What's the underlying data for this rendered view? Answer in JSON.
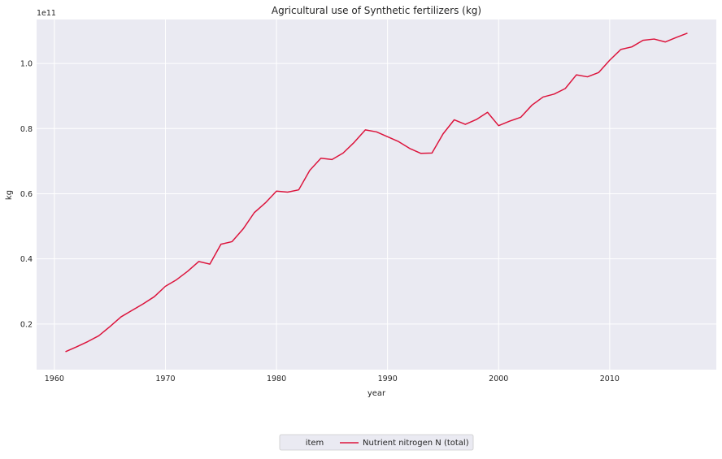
{
  "chart_data": {
    "type": "line",
    "title": "Agricultural use of Synthetic fertilizers (kg)",
    "xlabel": "year",
    "ylabel": "kg",
    "y_offset_label": "1e11",
    "xlim": [
      1958.4,
      2019.6
    ],
    "ylim": [
      6000000000.0,
      113500000000.0
    ],
    "x_ticks": [
      1960,
      1970,
      1980,
      1990,
      2000,
      2010
    ],
    "x_tick_labels": [
      "1960",
      "1970",
      "1980",
      "1990",
      "2000",
      "2010"
    ],
    "y_ticks": [
      20000000000.0,
      40000000000.0,
      60000000000.0,
      80000000000.0,
      100000000000.0
    ],
    "y_tick_labels": [
      "0.2",
      "0.4",
      "0.6",
      "0.8",
      "1.0"
    ],
    "grid": true,
    "legend": {
      "placement": "bottom-center",
      "title": "item",
      "entries": [
        "Nutrient nitrogen N (total)"
      ]
    },
    "colors": {
      "background": "#eaeaf2",
      "grid": "#ffffff",
      "line": "#dc143c"
    },
    "series": [
      {
        "name": "Nutrient nitrogen N (total)",
        "x": [
          1961,
          1962,
          1963,
          1964,
          1965,
          1966,
          1967,
          1968,
          1969,
          1970,
          1971,
          1972,
          1973,
          1974,
          1975,
          1976,
          1977,
          1978,
          1979,
          1980,
          1981,
          1982,
          1983,
          1984,
          1985,
          1986,
          1987,
          1988,
          1989,
          1990,
          1991,
          1992,
          1993,
          1994,
          1995,
          1996,
          1997,
          1998,
          1999,
          2000,
          2001,
          2002,
          2003,
          2004,
          2005,
          2006,
          2007,
          2008,
          2009,
          2010,
          2011,
          2012,
          2013,
          2014,
          2015,
          2016,
          2017
        ],
        "values": [
          11500000000.0,
          13000000000.0,
          14600000000.0,
          16400000000.0,
          19200000000.0,
          22200000000.0,
          24200000000.0,
          26200000000.0,
          28400000000.0,
          31600000000.0,
          33600000000.0,
          36200000000.0,
          39200000000.0,
          38400000000.0,
          44500000000.0,
          45300000000.0,
          49200000000.0,
          54200000000.0,
          57200000000.0,
          60800000000.0,
          60500000000.0,
          61200000000.0,
          67200000000.0,
          70900000000.0,
          70500000000.0,
          72500000000.0,
          75800000000.0,
          79600000000.0,
          79000000000.0,
          77500000000.0,
          76000000000.0,
          73900000000.0,
          72400000000.0,
          72500000000.0,
          78400000000.0,
          82700000000.0,
          81300000000.0,
          82800000000.0,
          85000000000.0,
          80900000000.0,
          82300000000.0,
          83500000000.0,
          87200000000.0,
          89700000000.0,
          90600000000.0,
          92300000000.0,
          96500000000.0,
          95900000000.0,
          97200000000.0,
          101000000000.0,
          104300000000.0,
          105100000000.0,
          107100000000.0,
          107500000000.0,
          106600000000.0,
          108000000000.0,
          109300000000.0
        ]
      }
    ]
  }
}
